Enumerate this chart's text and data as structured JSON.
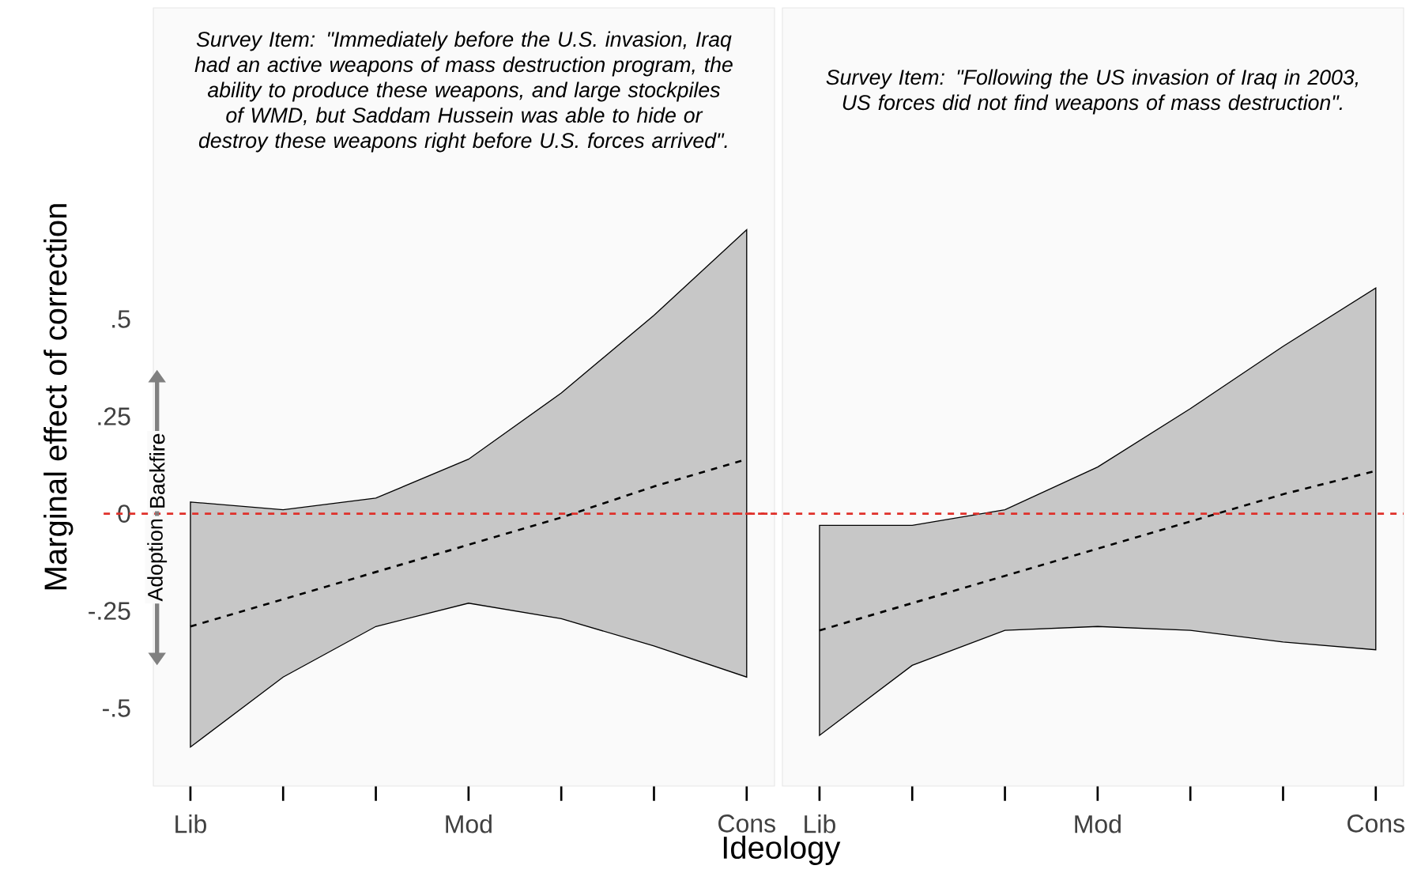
{
  "chart_data": [
    {
      "type": "line",
      "title": "Survey Item: \"Immediately before the U.S. invasion, Iraq had an active weapons of mass destruction program, the ability to produce these weapons, and large stockpiles of WMD, but Saddam Hussein was able to hide or destroy these weapons right before U.S. forces arrived\".",
      "xlabel": "Ideology",
      "ylabel": "Marginal effect of correction",
      "categories": [
        "Lib",
        null,
        null,
        "Mod",
        null,
        null,
        "Cons"
      ],
      "series": [
        {
          "color": "#000000",
          "line_style": "dashed",
          "values": [
            -0.29,
            -0.22,
            -0.15,
            -0.08,
            -0.01,
            0.07,
            0.14
          ],
          "lower": [
            -0.6,
            -0.42,
            -0.29,
            -0.23,
            -0.27,
            -0.34,
            -0.42
          ],
          "upper": [
            0.03,
            0.01,
            0.04,
            0.14,
            0.31,
            0.51,
            0.73
          ]
        }
      ],
      "ylim": [
        -0.7,
        1.3
      ],
      "yticks": [
        {
          "value": -0.5,
          "label": "-.5"
        },
        {
          "value": -0.25,
          "label": "-.25"
        },
        {
          "value": 0,
          "label": "0"
        },
        {
          "value": 0.25,
          "label": ".25"
        },
        {
          "value": 0.5,
          "label": ".5"
        }
      ],
      "ref_lines": [
        {
          "axis": "y",
          "value": 0,
          "color": "#e0302a",
          "line_style": "dashed"
        }
      ],
      "annotations": [
        "Backfire",
        "Adoption"
      ],
      "grid": false
    },
    {
      "type": "line",
      "title": "Survey Item: \"Following the US invasion of Iraq in 2003, US forces did not find weapons of mass destruction\".",
      "categories": [
        "Lib",
        null,
        null,
        "Mod",
        null,
        null,
        "Cons"
      ],
      "series": [
        {
          "color": "#000000",
          "line_style": "dashed",
          "values": [
            -0.3,
            -0.23,
            -0.16,
            -0.09,
            -0.02,
            0.05,
            0.11
          ],
          "lower": [
            -0.57,
            -0.39,
            -0.3,
            -0.29,
            -0.3,
            -0.33,
            -0.35
          ],
          "upper": [
            -0.03,
            -0.03,
            0.01,
            0.12,
            0.27,
            0.43,
            0.58
          ]
        }
      ],
      "ylim": [
        -0.7,
        1.3
      ],
      "ref_lines": [
        {
          "axis": "y",
          "value": 0,
          "color": "#e0302a",
          "line_style": "dashed"
        }
      ],
      "tick_labels": "x",
      "grid": false
    }
  ]
}
